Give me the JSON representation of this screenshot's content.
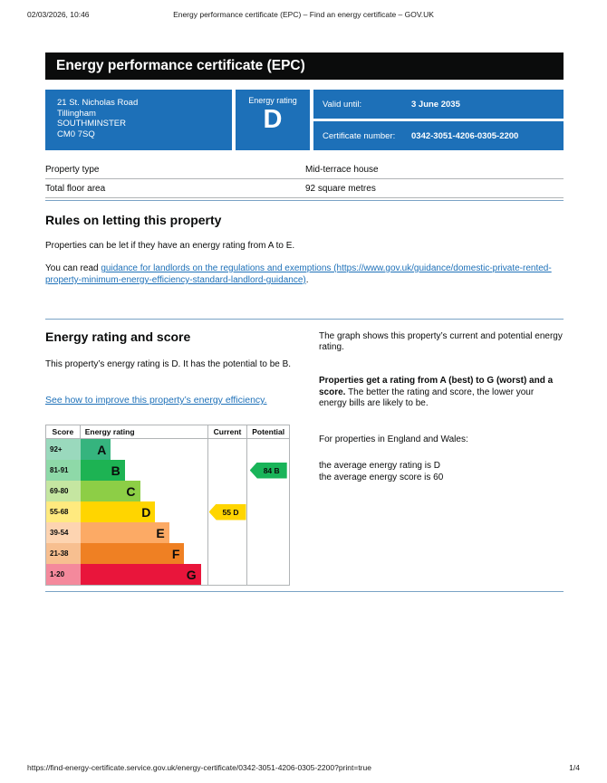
{
  "page": {
    "print_header": {
      "datetime": "02/03/2026, 10:46",
      "title": "Energy performance certificate (EPC) – Find an energy certificate – GOV.UK"
    },
    "print_footer": {
      "url": "https://find-energy-certificate.service.gov.uk/energy-certificate/0342-3051-4206-0305-2200?print=true",
      "page_indicator": "1/4"
    }
  },
  "banner": {
    "title": "Energy performance certificate (EPC)"
  },
  "summary": {
    "address_lines": [
      "21 St. Nicholas Road",
      "Tillingham",
      "SOUTHMINSTER",
      "CM0 7SQ"
    ],
    "energy_rating_label": "Energy rating",
    "energy_rating": "D",
    "valid_until_label": "Valid until:",
    "valid_until": "3 June 2035",
    "certificate_number_label": "Certificate number:",
    "certificate_number": "0342-3051-4206-0305-2200"
  },
  "property_table": {
    "rows": [
      {
        "label": "Property type",
        "value": "Mid-terrace house"
      },
      {
        "label": "Total floor area",
        "value": "92 square metres"
      }
    ]
  },
  "letting_rules": {
    "heading": "Rules on letting this property",
    "paragraph1": "Properties can be let if they have an energy rating from A to E.",
    "paragraph2_prefix": "You can read ",
    "paragraph2_link": "guidance for landlords on the regulations and exemptions (https://www.gov.uk/guidance/domestic-private-rented-property-minimum-energy-efficiency-standard-landlord-guidance)",
    "paragraph2_suffix": "."
  },
  "rating_section": {
    "heading": "Energy rating and score",
    "intro": "This property’s energy rating is D. It has the potential to be B.",
    "improve_link": "See how to improve this property’s energy efficiency.",
    "graph_caption": "The graph shows this property’s current and potential energy rating.",
    "explain_bold": "Properties get a rating from A (best) to G (worst) and a score.",
    "explain_rest": " The better the rating and score, the lower your energy bills are likely to be.",
    "averages_intro": "For properties in England and Wales:",
    "average_rating_line": "the average energy rating is D",
    "average_score_line": "the average energy score is 60"
  },
  "chart_data": {
    "type": "bar",
    "title": "EPC energy rating and score chart",
    "columns": [
      "Score",
      "Energy rating",
      "Current",
      "Potential"
    ],
    "bands": [
      {
        "score": "92+",
        "letter": "A",
        "color": "#35b47e",
        "tint": "#9ad9bd",
        "bar_pct": 24
      },
      {
        "score": "81-91",
        "letter": "B",
        "color": "#1db353",
        "tint": "#8ed9a8",
        "bar_pct": 35
      },
      {
        "score": "69-80",
        "letter": "C",
        "color": "#8dce46",
        "tint": "#c5e6a1",
        "bar_pct": 47
      },
      {
        "score": "55-68",
        "letter": "D",
        "color": "#ffd500",
        "tint": "#ffea7f",
        "bar_pct": 59
      },
      {
        "score": "39-54",
        "letter": "E",
        "color": "#fcaa65",
        "tint": "#fdd4b1",
        "bar_pct": 70
      },
      {
        "score": "21-38",
        "letter": "F",
        "color": "#ef8023",
        "tint": "#f7bf90",
        "bar_pct": 82
      },
      {
        "score": "1-20",
        "letter": "G",
        "color": "#e9153b",
        "tint": "#f4899c",
        "bar_pct": 95
      }
    ],
    "current": {
      "score": 55,
      "letter": "D",
      "label": "55 D",
      "band_index": 3,
      "color": "#ffd500"
    },
    "potential": {
      "score": 84,
      "letter": "B",
      "label": "84 B",
      "band_index": 1,
      "color": "#19b459"
    }
  },
  "colors": {
    "govuk_blue": "#1d70b8",
    "banner_black": "#0b0c0c",
    "divider_blue": "#7aa3c6",
    "table_border": "#b1b4b6",
    "link": "#1d70b8"
  }
}
